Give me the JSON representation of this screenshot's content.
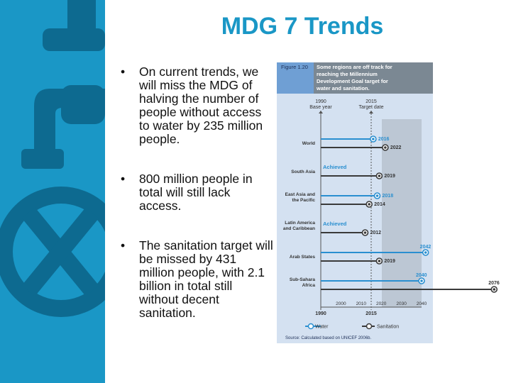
{
  "slide": {
    "title": "MDG 7 Trends",
    "bullets": [
      "On current trends, we will miss the MDG of halving the number of people without access to water by 235 million people.",
      "800 million people in total will still lack access.",
      "The sanitation target will be missed by 431 million people, with 2.1 billion in total still without decent sanitation."
    ]
  },
  "figure": {
    "label": "Figure 1.20",
    "caption": "Some regions are off track for reaching the Millennium Development Goal target for water and sanitation.",
    "base_year_label": [
      "1990",
      "Base year"
    ],
    "target_date_label": [
      "2015",
      "Target date"
    ],
    "axis_ticks": [
      "2000",
      "2010",
      "2020",
      "2030",
      "2040"
    ],
    "axis_start": "1990",
    "axis_target": "2015",
    "regions": [
      {
        "name": [
          "World"
        ],
        "water": "2016",
        "sanitation": "2022"
      },
      {
        "name": [
          "South Asia"
        ],
        "water": "Achieved",
        "sanitation": "2019"
      },
      {
        "name": [
          "East Asia and",
          "the Pacific"
        ],
        "water": "2018",
        "sanitation": "2014"
      },
      {
        "name": [
          "Latin America",
          "and Caribbean"
        ],
        "water": "Achieved",
        "sanitation": "2012"
      },
      {
        "name": [
          "Arab States"
        ],
        "water": "2042",
        "sanitation": "2019"
      },
      {
        "name": [
          "Sub-Sahara",
          "Africa"
        ],
        "water": "2040",
        "sanitation": "2076"
      }
    ],
    "legend": {
      "water": "Water",
      "sanitation": "Sanitation"
    },
    "source": "Source: Calculated based on UNICEF 2006b.",
    "colors": {
      "water": "#2a8fd0",
      "sanitation": "#3a3a3a",
      "panel": "#d4e1f1",
      "header": "#7b8893",
      "blue_block": "#6f9fd4",
      "sidebar": "#1a97c6"
    }
  }
}
